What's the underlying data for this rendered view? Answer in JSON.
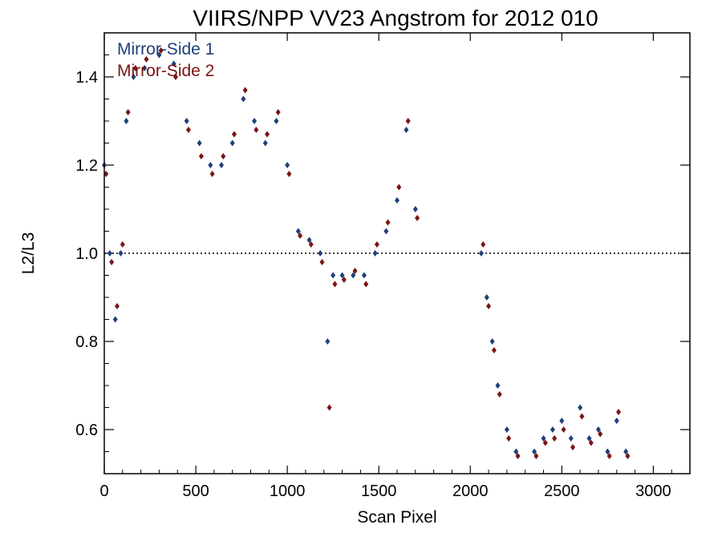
{
  "chart_data": {
    "type": "scatter",
    "title": "VIIRS/NPP VV23 Angstrom for 2012 010",
    "xlabel": "Scan Pixel",
    "ylabel": "L2/L3",
    "xlim": [
      0,
      3200
    ],
    "ylim": [
      0.5,
      1.5
    ],
    "x_ticks": [
      0,
      500,
      1000,
      1500,
      2000,
      2500,
      3000
    ],
    "y_ticks": [
      0.6,
      0.8,
      1.0,
      1.2,
      1.4
    ],
    "x_tick_labels": [
      "0",
      "500",
      "1000",
      "1500",
      "2000",
      "2500",
      "3000"
    ],
    "y_tick_labels": [
      "0.6",
      "0.8",
      "1.0",
      "1.2",
      "1.4"
    ],
    "reference_line": {
      "y": 1.0,
      "style": "dotted"
    },
    "legend_position": "top-left",
    "series": [
      {
        "name": "Mirror-Side 1",
        "color": "#1f3f7a",
        "marker": "diamond",
        "x": [
          0,
          30,
          60,
          90,
          120,
          160,
          220,
          300,
          380,
          450,
          520,
          580,
          640,
          700,
          760,
          820,
          880,
          940,
          1000,
          1060,
          1120,
          1180,
          1220,
          1250,
          1300,
          1360,
          1420,
          1480,
          1540,
          1600,
          1650,
          1700,
          2060,
          2090,
          2120,
          2150,
          2200,
          2250,
          2350,
          2400,
          2450,
          2500,
          2550,
          2600,
          2650,
          2700,
          2750,
          2800,
          2850
        ],
        "y": [
          1.2,
          1.0,
          0.85,
          1.0,
          1.3,
          1.4,
          1.42,
          1.45,
          1.43,
          1.3,
          1.25,
          1.2,
          1.2,
          1.25,
          1.35,
          1.3,
          1.25,
          1.3,
          1.2,
          1.05,
          1.03,
          1.0,
          0.8,
          0.95,
          0.95,
          0.95,
          0.95,
          1.0,
          1.05,
          1.12,
          1.28,
          1.1,
          1.0,
          0.9,
          0.8,
          0.7,
          0.6,
          0.55,
          0.55,
          0.58,
          0.6,
          0.62,
          0.58,
          0.65,
          0.58,
          0.6,
          0.55,
          0.62,
          0.55
        ]
      },
      {
        "name": "Mirror-Side 2",
        "color": "#7a1414",
        "marker": "diamond",
        "x": [
          10,
          40,
          70,
          100,
          130,
          170,
          230,
          310,
          390,
          460,
          530,
          590,
          650,
          710,
          770,
          830,
          890,
          950,
          1010,
          1070,
          1130,
          1190,
          1230,
          1260,
          1310,
          1370,
          1430,
          1490,
          1550,
          1610,
          1660,
          1710,
          2070,
          2100,
          2130,
          2160,
          2210,
          2260,
          2360,
          2410,
          2460,
          2510,
          2560,
          2610,
          2660,
          2710,
          2760,
          2810,
          2860
        ],
        "y": [
          1.18,
          0.98,
          0.88,
          1.02,
          1.32,
          1.42,
          1.44,
          1.46,
          1.4,
          1.28,
          1.22,
          1.18,
          1.22,
          1.27,
          1.37,
          1.28,
          1.27,
          1.32,
          1.18,
          1.04,
          1.02,
          0.98,
          0.65,
          0.93,
          0.94,
          0.96,
          0.93,
          1.02,
          1.07,
          1.15,
          1.3,
          1.08,
          1.02,
          0.88,
          0.78,
          0.68,
          0.58,
          0.54,
          0.54,
          0.57,
          0.58,
          0.6,
          0.56,
          0.63,
          0.57,
          0.59,
          0.54,
          0.64,
          0.54
        ]
      }
    ]
  }
}
